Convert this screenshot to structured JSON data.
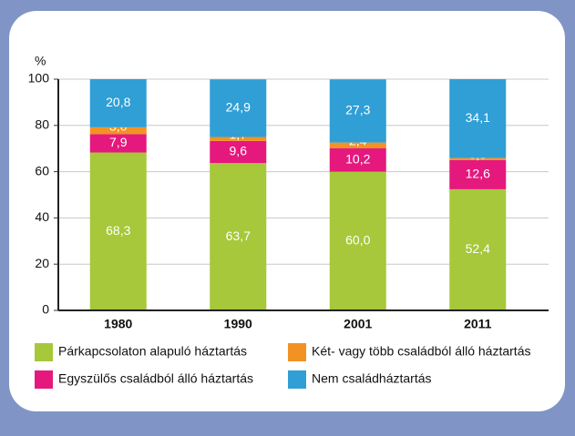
{
  "chart_data": {
    "type": "bar",
    "stacked": true,
    "ylabel": "%",
    "categories": [
      "1980",
      "1990",
      "2001",
      "2011"
    ],
    "series": [
      {
        "name": "Párkapcsolaton alapuló háztartás",
        "color": "#a6c83a",
        "values": [
          68.3,
          63.7,
          60.0,
          52.4
        ],
        "value_labels": [
          "68,3",
          "63,7",
          "60,0",
          "52,4"
        ]
      },
      {
        "name": "Egyszülős családból álló háztartás",
        "color": "#e5187e",
        "values": [
          7.9,
          9.6,
          10.2,
          12.6
        ],
        "value_labels": [
          "7,9",
          "9,6",
          "10,2",
          "12,6"
        ]
      },
      {
        "name": "Két- vagy több családból álló háztartás",
        "color": "#f39224",
        "values": [
          3.0,
          1.7,
          2.4,
          0.9
        ],
        "value_labels": [
          "3,0",
          "1,7",
          "2,4",
          "0,9"
        ]
      },
      {
        "name": "Nem családháztartás",
        "color": "#2f9fd5",
        "values": [
          20.8,
          24.9,
          27.3,
          34.1
        ],
        "value_labels": [
          "20,8",
          "24,9",
          "27,3",
          "34,1"
        ]
      }
    ],
    "ylim": [
      0,
      100
    ],
    "yticks": [
      0,
      20,
      40,
      60,
      80,
      100
    ],
    "grid": true
  }
}
